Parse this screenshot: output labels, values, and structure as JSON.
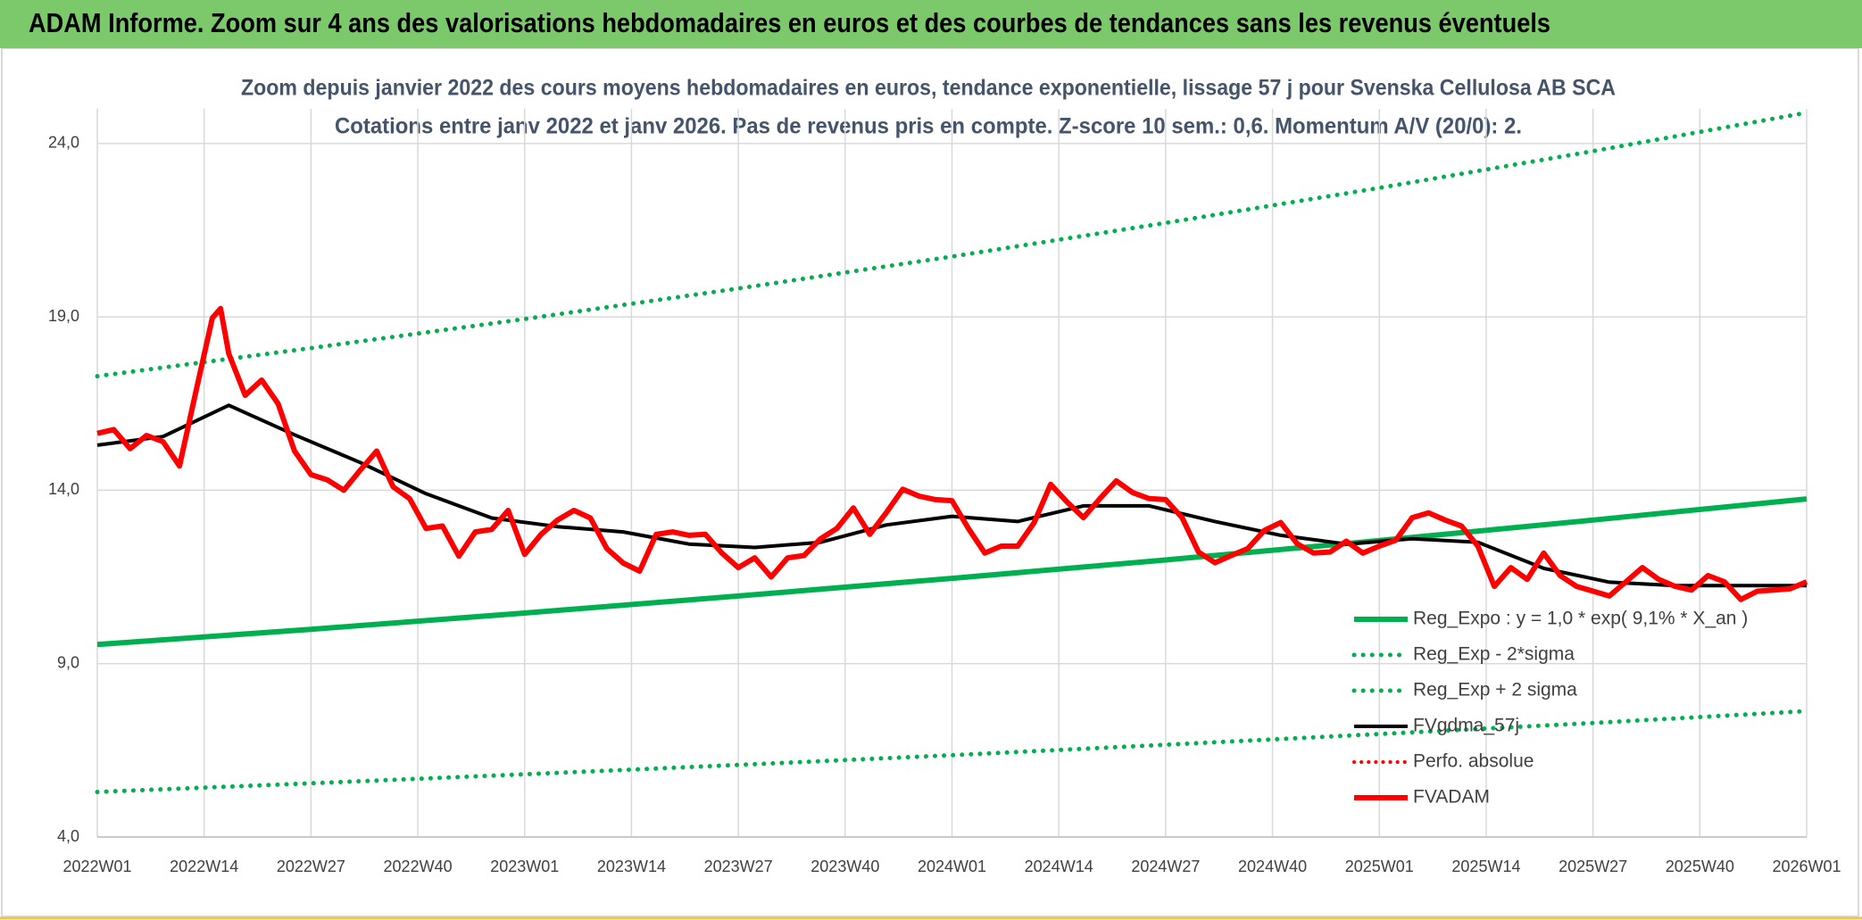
{
  "header": {
    "title": "ADAM Informe. Zoom sur 4 ans des valorisations hebdomadaires en euros et des courbes de tendances sans les revenus éventuels"
  },
  "chart_data": {
    "type": "line",
    "title": "Zoom depuis janvier 2022 des cours moyens hebdomadaires en euros, tendance exponentielle, lissage 57 j pour Svenska Cellulosa AB SCA",
    "subtitle": "Cotations entre janv 2022 et janv 2026. Pas de revenus pris en compte. Z-score 10 sem.: 0,6. Momentum A/V (20/0): 2.",
    "xlim": [
      0,
      208
    ],
    "xticks": [
      {
        "value": 0,
        "label": "2022W01"
      },
      {
        "value": 13,
        "label": "2022W14"
      },
      {
        "value": 26,
        "label": "2022W27"
      },
      {
        "value": 39,
        "label": "2022W40"
      },
      {
        "value": 52,
        "label": "2023W01"
      },
      {
        "value": 65,
        "label": "2023W14"
      },
      {
        "value": 78,
        "label": "2023W27"
      },
      {
        "value": 91,
        "label": "2023W40"
      },
      {
        "value": 104,
        "label": "2024W01"
      },
      {
        "value": 117,
        "label": "2024W14"
      },
      {
        "value": 130,
        "label": "2024W27"
      },
      {
        "value": 143,
        "label": "2024W40"
      },
      {
        "value": 156,
        "label": "2025W01"
      },
      {
        "value": 169,
        "label": "2025W14"
      },
      {
        "value": 182,
        "label": "2025W27"
      },
      {
        "value": 195,
        "label": "2025W40"
      },
      {
        "value": 208,
        "label": "2026W01"
      }
    ],
    "ylim": [
      4,
      25
    ],
    "yticks": [
      {
        "value": 4,
        "label": "4,0"
      },
      {
        "value": 9,
        "label": "9,0"
      },
      {
        "value": 14,
        "label": "14,0"
      },
      {
        "value": 19,
        "label": "19,0"
      },
      {
        "value": 24,
        "label": "24,0"
      }
    ],
    "grid": true,
    "legend": "right",
    "series": [
      {
        "name": "Reg_Expo : y = 1,0 * exp( 9,1% *  X_an )",
        "color": "#00b050",
        "line_style": "solid",
        "x": [
          0,
          26,
          52,
          78,
          104,
          130,
          156,
          182,
          208
        ],
        "values": [
          9.55,
          9.99,
          10.46,
          10.95,
          11.46,
          11.99,
          12.55,
          13.14,
          13.75
        ]
      },
      {
        "name": "Reg_Exp - 2*sigma",
        "color": "#00b050",
        "line_style": "dotted",
        "x": [
          0,
          26,
          52,
          78,
          104,
          130,
          156,
          182,
          208
        ],
        "values": [
          5.3,
          5.55,
          5.81,
          6.08,
          6.36,
          6.66,
          6.97,
          7.29,
          7.63
        ]
      },
      {
        "name": "Reg_Exp + 2 sigma",
        "color": "#00b050",
        "line_style": "dotted",
        "x": [
          0,
          26,
          52,
          78,
          104,
          130,
          156,
          182,
          208
        ],
        "values": [
          17.29,
          18.1,
          18.94,
          19.82,
          20.74,
          21.71,
          22.72,
          23.78,
          24.89
        ]
      },
      {
        "name": "FVgdma_57j",
        "color": "#000000",
        "line_style": "solid",
        "x": [
          0,
          8,
          16,
          24,
          32,
          40,
          48,
          56,
          64,
          72,
          80,
          88,
          96,
          104,
          112,
          120,
          128,
          136,
          144,
          152,
          160,
          168,
          176,
          184,
          192,
          200,
          208
        ],
        "values": [
          15.3,
          15.55,
          16.45,
          15.6,
          14.8,
          13.9,
          13.2,
          12.95,
          12.8,
          12.45,
          12.35,
          12.5,
          13.0,
          13.25,
          13.1,
          13.55,
          13.55,
          13.1,
          12.7,
          12.45,
          12.6,
          12.5,
          11.75,
          11.35,
          11.25,
          11.25,
          11.25
        ]
      },
      {
        "name": "Perfo. absolue",
        "color": "#ff0000",
        "line_style": "dotted",
        "x": [],
        "values": []
      },
      {
        "name": "FVADAM",
        "color": "#ff0000",
        "line_style": "solid",
        "x": [
          0,
          2,
          4,
          6,
          8,
          10,
          12,
          14,
          15,
          16,
          18,
          20,
          22,
          24,
          26,
          28,
          30,
          32,
          34,
          36,
          38,
          40,
          42,
          44,
          46,
          48,
          50,
          52,
          54,
          56,
          58,
          60,
          62,
          64,
          66,
          68,
          70,
          72,
          74,
          76,
          78,
          80,
          82,
          84,
          86,
          88,
          90,
          92,
          94,
          96,
          98,
          100,
          102,
          104,
          106,
          108,
          110,
          112,
          114,
          116,
          118,
          120,
          122,
          124,
          126,
          128,
          130,
          132,
          134,
          136,
          138,
          140,
          142,
          144,
          146,
          148,
          150,
          152,
          154,
          156,
          158,
          160,
          162,
          164,
          166,
          168,
          170,
          172,
          174,
          176,
          178,
          180,
          182,
          184,
          186,
          188,
          190,
          192,
          194,
          196,
          198,
          200,
          202,
          204,
          206,
          208
        ],
        "values": [
          15.64,
          15.75,
          15.2,
          15.58,
          15.4,
          14.7,
          16.85,
          18.97,
          19.24,
          17.94,
          16.74,
          17.18,
          16.5,
          15.13,
          14.45,
          14.3,
          14.0,
          14.58,
          15.13,
          14.1,
          13.76,
          12.9,
          12.97,
          12.1,
          12.8,
          12.87,
          13.42,
          12.15,
          12.73,
          13.14,
          13.42,
          13.2,
          12.32,
          11.9,
          11.67,
          12.73,
          12.8,
          12.7,
          12.73,
          12.19,
          11.77,
          12.05,
          11.5,
          12.05,
          12.12,
          12.6,
          12.9,
          13.49,
          12.73,
          13.35,
          14.03,
          13.83,
          13.73,
          13.7,
          12.9,
          12.19,
          12.39,
          12.39,
          13.07,
          14.17,
          13.66,
          13.21,
          13.76,
          14.27,
          13.93,
          13.76,
          13.73,
          13.21,
          12.22,
          11.91,
          12.12,
          12.32,
          12.84,
          13.07,
          12.46,
          12.19,
          12.22,
          12.53,
          12.19,
          12.39,
          12.56,
          13.21,
          13.35,
          13.14,
          12.97,
          12.39,
          11.23,
          11.77,
          11.43,
          12.19,
          11.54,
          11.23,
          11.09,
          10.95,
          11.36,
          11.77,
          11.43,
          11.23,
          11.12,
          11.54,
          11.36,
          10.85,
          11.09,
          11.12,
          11.16,
          11.36
        ]
      }
    ]
  }
}
